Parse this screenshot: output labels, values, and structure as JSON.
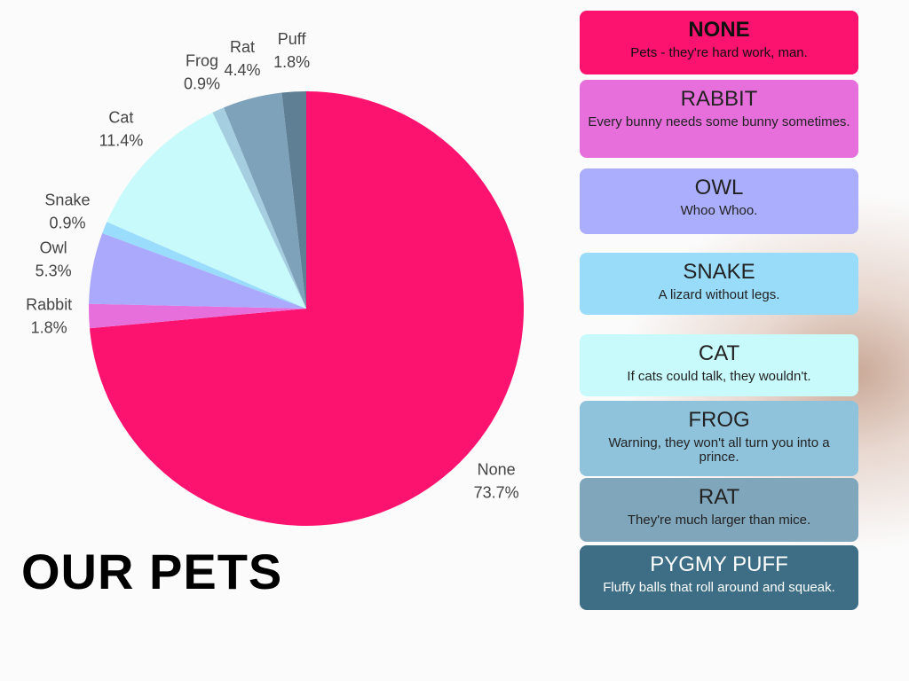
{
  "chart_data": {
    "type": "pie",
    "title": "OUR PETS",
    "categories": [
      "None",
      "Rabbit",
      "Owl",
      "Snake",
      "Cat",
      "Frog",
      "Rat",
      "Puff"
    ],
    "values": [
      73.7,
      1.8,
      5.3,
      0.9,
      11.4,
      0.9,
      4.4,
      1.8
    ],
    "value_labels": [
      "73.7%",
      "1.8%",
      "5.3%",
      "0.9%",
      "11.4%",
      "0.9%",
      "4.4%",
      "1.8%"
    ],
    "colors": [
      "#fc136f",
      "#e66fdc",
      "#aaa9fb",
      "#99dcfb",
      "#c9fafb",
      "#a5cfe0",
      "#7fa2bb",
      "#5f7f95"
    ]
  },
  "cards": [
    {
      "title": "NONE",
      "text": "Pets - they're hard work, man."
    },
    {
      "title": "RABBIT",
      "text": "Every bunny needs some bunny sometimes."
    },
    {
      "title": "OWL",
      "text": "Whoo Whoo."
    },
    {
      "title": "SNAKE",
      "text": "A lizard without legs."
    },
    {
      "title": "CAT",
      "text": "If cats could talk, they wouldn't."
    },
    {
      "title": "FROG",
      "text": "Warning, they won't all turn you into a prince."
    },
    {
      "title": "RAT",
      "text": "They're much larger than mice."
    },
    {
      "title": "PYGMY PUFF",
      "text": "Fluffy balls that roll around and squeak."
    }
  ]
}
